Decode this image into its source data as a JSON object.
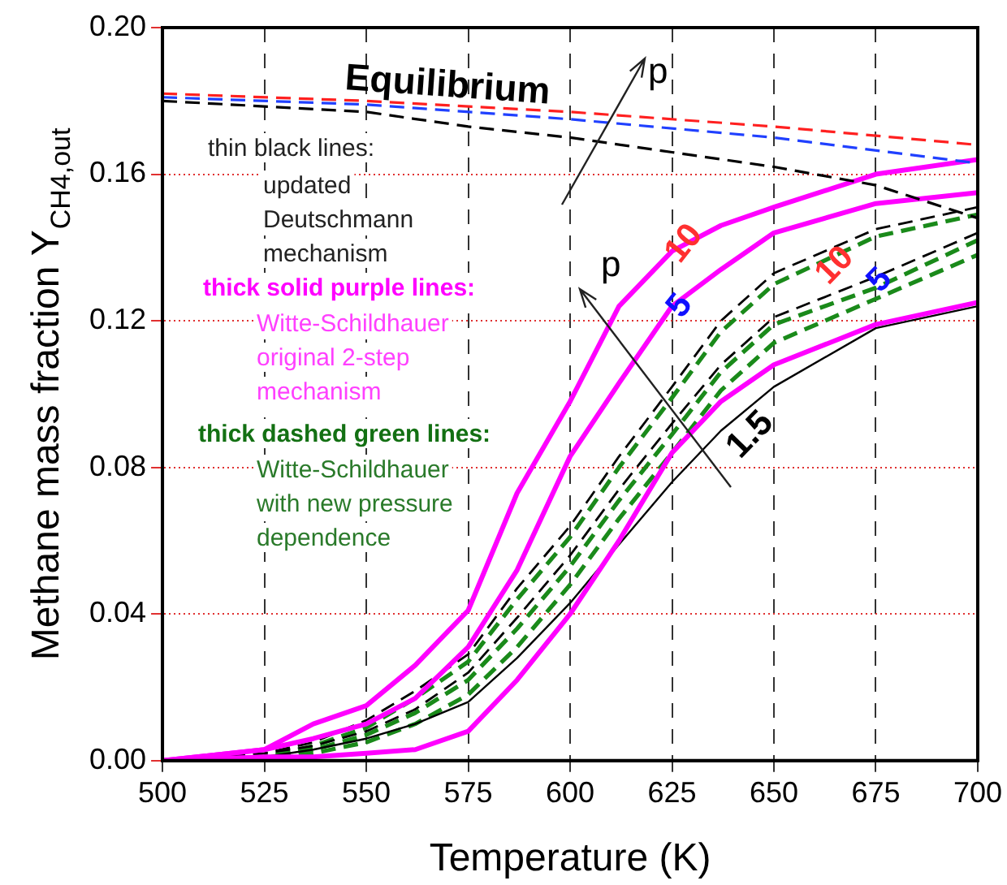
{
  "chart_data": {
    "type": "line",
    "xlabel": "Temperature (K)",
    "ylabel": "Methane mass fraction Y$_{CH4,out}$",
    "xlim": [
      500,
      700
    ],
    "ylim": [
      0,
      0.2
    ],
    "xticks": [
      500,
      525,
      550,
      575,
      600,
      625,
      650,
      675,
      700
    ],
    "yticks": [
      {
        "value": 0,
        "label": "0.00"
      },
      {
        "value": 0.04,
        "label": "0.04"
      },
      {
        "value": 0.08,
        "label": "0.08"
      },
      {
        "value": 0.12,
        "label": "0.12"
      },
      {
        "value": 0.16,
        "label": "0.16"
      },
      {
        "value": 0.2,
        "label": "0.20"
      }
    ],
    "grid": true,
    "legend": false,
    "marker": "none",
    "series": [
      {
        "color": "#ff2020",
        "line_style": "dashed",
        "x": [
          500,
          550,
          600,
          650,
          700
        ],
        "values": [
          0.182,
          0.18,
          0.177,
          0.173,
          0.168
        ]
      },
      {
        "color": "#2040ff",
        "line_style": "dashed",
        "x": [
          500,
          550,
          600,
          650,
          700
        ],
        "values": [
          0.181,
          0.179,
          0.175,
          0.17,
          0.163
        ]
      },
      {
        "color": "#000000",
        "line_style": "dashed",
        "x": [
          500,
          550,
          575,
          600,
          625,
          650,
          675,
          700
        ],
        "values": [
          0.18,
          0.177,
          0.173,
          0.17,
          0.166,
          0.162,
          0.157,
          0.148
        ]
      },
      {
        "color": "#ff00ff",
        "line_style": "solid",
        "x": [
          500,
          525,
          537,
          550,
          562,
          575,
          587,
          600,
          612,
          625,
          637,
          650,
          675,
          700
        ],
        "values": [
          0,
          0.003,
          0.01,
          0.015,
          0.026,
          0.041,
          0.073,
          0.098,
          0.124,
          0.139,
          0.146,
          0.151,
          0.16,
          0.164
        ]
      },
      {
        "color": "#ff00ff",
        "line_style": "solid",
        "x": [
          500,
          525,
          537,
          550,
          562,
          575,
          587,
          600,
          612,
          625,
          637,
          650,
          675,
          700
        ],
        "values": [
          0,
          0.003,
          0.006,
          0.01,
          0.017,
          0.031,
          0.052,
          0.083,
          0.103,
          0.124,
          0.134,
          0.144,
          0.152,
          0.155
        ]
      },
      {
        "color": "#ff00ff",
        "line_style": "solid",
        "x": [
          500,
          525,
          537,
          550,
          562,
          575,
          587,
          600,
          612,
          625,
          637,
          650,
          675,
          700
        ],
        "values": [
          0,
          0.001,
          0.001,
          0.002,
          0.003,
          0.008,
          0.022,
          0.04,
          0.06,
          0.084,
          0.098,
          0.108,
          0.119,
          0.125
        ]
      },
      {
        "color": "#000000",
        "line_style": "solid",
        "x": [
          500,
          525,
          537,
          550,
          562,
          575,
          587,
          600,
          612,
          625,
          637,
          650,
          675,
          700
        ],
        "values": [
          0,
          0.001,
          0.003,
          0.006,
          0.01,
          0.016,
          0.028,
          0.043,
          0.059,
          0.076,
          0.09,
          0.102,
          0.118,
          0.124
        ]
      },
      {
        "color": "#000000",
        "line_style": "dashed",
        "x": [
          500,
          525,
          537,
          550,
          562,
          575,
          587,
          600,
          612,
          625,
          637,
          650,
          675,
          700
        ],
        "values": [
          0,
          0.002,
          0.005,
          0.011,
          0.019,
          0.029,
          0.047,
          0.064,
          0.083,
          0.102,
          0.12,
          0.133,
          0.145,
          0.151
        ]
      },
      {
        "color": "#000000",
        "line_style": "dashed",
        "x": [
          500,
          525,
          537,
          550,
          562,
          575,
          587,
          600,
          612,
          625,
          637,
          650,
          675,
          700
        ],
        "values": [
          0,
          0.002,
          0.004,
          0.008,
          0.014,
          0.024,
          0.039,
          0.056,
          0.074,
          0.092,
          0.108,
          0.121,
          0.132,
          0.144
        ]
      },
      {
        "color": "#1a8a1a",
        "line_style": "dashed",
        "x": [
          500,
          525,
          537,
          550,
          562,
          575,
          587,
          600,
          612,
          625,
          637,
          650,
          675,
          700
        ],
        "values": [
          0,
          0.001,
          0.004,
          0.009,
          0.017,
          0.027,
          0.044,
          0.061,
          0.08,
          0.099,
          0.117,
          0.13,
          0.143,
          0.149
        ]
      },
      {
        "color": "#1a8a1a",
        "line_style": "dashed",
        "x": [
          500,
          525,
          537,
          550,
          562,
          575,
          587,
          600,
          612,
          625,
          637,
          650,
          675,
          700
        ],
        "values": [
          0,
          0.001,
          0.003,
          0.007,
          0.013,
          0.022,
          0.036,
          0.053,
          0.071,
          0.089,
          0.106,
          0.119,
          0.129,
          0.142
        ]
      },
      {
        "color": "#1a8a1a",
        "line_style": "dashed",
        "x": [
          500,
          525,
          537,
          550,
          562,
          575,
          587,
          600,
          612,
          625,
          637,
          650,
          675,
          700
        ],
        "values": [
          0,
          0.001,
          0.002,
          0.005,
          0.01,
          0.018,
          0.031,
          0.048,
          0.066,
          0.084,
          0.101,
          0.114,
          0.126,
          0.138
        ]
      }
    ],
    "annotations": [
      "Equilibrium",
      "p",
      "p",
      "thin black lines:",
      "updated\nDeutschmann\nmechanism",
      "thick solid purple lines:",
      "Witte-Schildhauer\noriginal 2-step\nmechanism",
      "thick dashed green lines:",
      "Witte-Schildhauer\nwith new pressure\ndependence",
      {
        "text": "10",
        "x": 628,
        "y": 0.141
      },
      {
        "text": "5",
        "x": 627,
        "y": 0.124
      },
      {
        "text": "10",
        "x": 665,
        "y": 0.135
      },
      {
        "text": "5",
        "x": 676,
        "y": 0.131
      },
      "1.5"
    ]
  }
}
